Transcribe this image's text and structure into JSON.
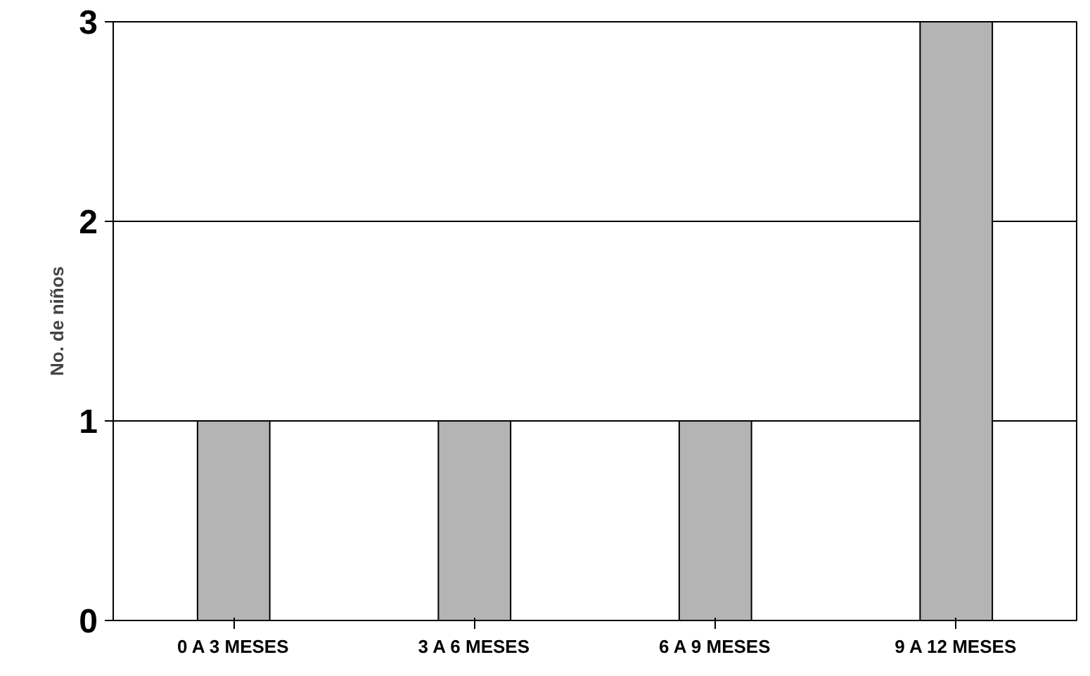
{
  "chart_data": {
    "type": "bar",
    "ylabel": "No. de niños",
    "categories": [
      "0 A 3 MESES",
      "3 A 6 MESES",
      "6 A 9 MESES",
      "9 A 12 MESES"
    ],
    "values": [
      1,
      1,
      1,
      3
    ],
    "color": "#b4b4b4",
    "ylim": [
      0,
      3
    ],
    "yticks": [
      0,
      1,
      2,
      3
    ],
    "grid": "y"
  }
}
